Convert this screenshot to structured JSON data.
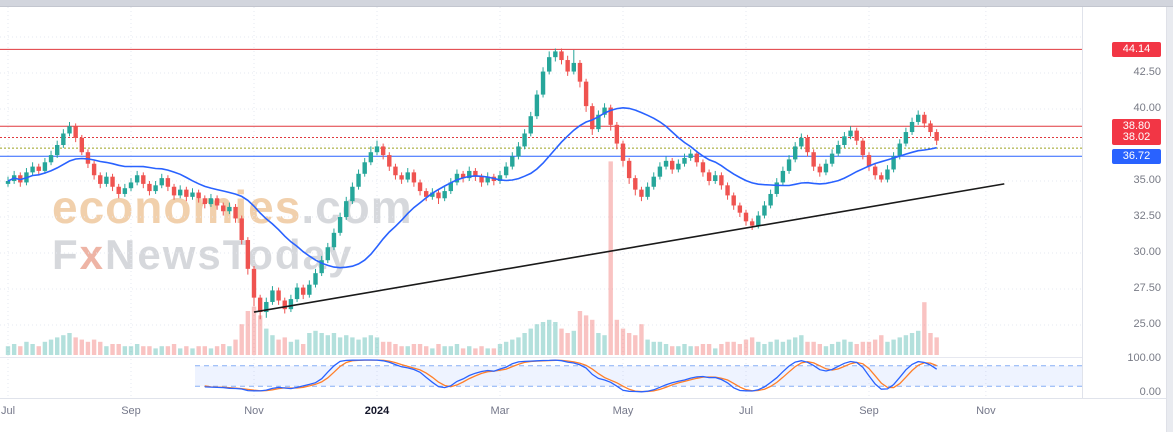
{
  "watermark": {
    "brand": "economies",
    "brand_suffix": ".com",
    "tagline_f": "F",
    "tagline_x": "x",
    "tagline_rest": "NewsToday"
  },
  "axis": {
    "y_ticks": [
      {
        "label": "42.50",
        "price": 42.5
      },
      {
        "label": "40.00",
        "price": 40.0
      },
      {
        "label": "35.00",
        "price": 35.0
      },
      {
        "label": "32.50",
        "price": 32.5
      },
      {
        "label": "30.00",
        "price": 30.0
      },
      {
        "label": "27.50",
        "price": 27.5
      },
      {
        "label": "25.00",
        "price": 25.0
      }
    ],
    "osc_ticks": [
      {
        "label": "100.00",
        "value": 100
      },
      {
        "label": "0.00",
        "value": 0
      }
    ],
    "x_ticks": [
      {
        "label": "Jul",
        "index": 0
      },
      {
        "label": "Sep",
        "index": 20
      },
      {
        "label": "Nov",
        "index": 40
      },
      {
        "label": "2024",
        "index": 60,
        "bold": true
      },
      {
        "label": "Mar",
        "index": 80
      },
      {
        "label": "May",
        "index": 100
      },
      {
        "label": "Jul",
        "index": 120
      },
      {
        "label": "Sep",
        "index": 140
      },
      {
        "label": "Nov",
        "index": 159
      }
    ]
  },
  "chart_data": {
    "type": "candlestick",
    "title": "",
    "x_axis_labels": [
      "Jul",
      "Sep",
      "Nov",
      "2024",
      "Mar",
      "May",
      "Jul",
      "Sep",
      "Nov"
    ],
    "visible_price_range": [
      22.8,
      47.0
    ],
    "grid_prices": [
      25,
      27.5,
      30,
      32.5,
      35,
      37.5,
      40,
      42.5,
      45
    ],
    "price_lines": [
      {
        "price": 44.14,
        "label": "44.14",
        "color": "#e0393e",
        "line_style": "solid",
        "badge": true,
        "badge_color": "#f23645"
      },
      {
        "price": 38.8,
        "label": "38.80",
        "color": "#e0393e",
        "line_style": "solid",
        "badge": true,
        "badge_color": "#f23645"
      },
      {
        "price": 38.02,
        "label": "38.02",
        "color": "#e0393e",
        "line_style": "dotted",
        "badge": true,
        "badge_color": "#f23645"
      },
      {
        "price": 37.28,
        "label": "",
        "color": "#9aa11f",
        "line_style": "dotted",
        "badge": false,
        "badge_color": ""
      },
      {
        "price": 36.72,
        "label": "36.72",
        "color": "#2962ff",
        "line_style": "solid",
        "badge": true,
        "badge_color": "#2962ff"
      }
    ],
    "trendline": {
      "from_index": 40,
      "from_price": 25.9,
      "to_index": 162,
      "to_price": 34.8,
      "color": "#1a1a1a"
    },
    "indicators": {
      "sma": {
        "period": 20,
        "color": "#2962ff"
      },
      "stochastic": {
        "k_period": 14,
        "smooth": 3,
        "d_period": 3,
        "k_color": "#2962ff",
        "d_color": "#ff7f2a",
        "upper_band": 80,
        "lower_band": 20,
        "start_index": 32,
        "range": [
          0,
          100
        ]
      }
    },
    "colors": {
      "up": "#26a69a",
      "down": "#ef5350",
      "volume_up": "rgba(38,166,154,0.35)",
      "volume_down": "rgba(239,83,80,0.35)",
      "grid": "#e6e8f0",
      "band_fill": "rgba(41,98,255,0.08)",
      "band_line": "#86aef5"
    },
    "candles": [
      [
        34.8,
        35.3,
        34.6,
        35.0,
        4
      ],
      [
        35.0,
        35.7,
        34.8,
        35.4,
        5
      ],
      [
        35.4,
        35.6,
        34.6,
        34.9,
        4
      ],
      [
        34.9,
        35.9,
        34.7,
        35.6,
        6
      ],
      [
        35.6,
        36.3,
        35.4,
        36.0,
        5
      ],
      [
        36.0,
        36.2,
        35.4,
        35.7,
        4
      ],
      [
        35.7,
        36.6,
        35.5,
        36.3,
        6
      ],
      [
        36.3,
        37.1,
        36.1,
        36.8,
        7
      ],
      [
        36.8,
        37.8,
        36.6,
        37.5,
        8
      ],
      [
        37.5,
        38.6,
        37.3,
        38.3,
        9
      ],
      [
        38.3,
        39.1,
        38.1,
        38.8,
        10
      ],
      [
        38.8,
        39.0,
        37.7,
        38.0,
        8
      ],
      [
        38.0,
        38.2,
        36.8,
        37.0,
        7
      ],
      [
        37.0,
        37.2,
        35.9,
        36.2,
        6
      ],
      [
        36.2,
        36.4,
        35.1,
        35.4,
        7
      ],
      [
        35.4,
        35.6,
        34.5,
        34.8,
        6
      ],
      [
        34.8,
        35.6,
        34.6,
        35.3,
        4
      ],
      [
        35.3,
        35.5,
        34.3,
        34.6,
        5
      ],
      [
        34.6,
        34.8,
        33.8,
        34.1,
        5
      ],
      [
        34.1,
        34.8,
        33.9,
        34.5,
        4
      ],
      [
        34.5,
        35.2,
        34.3,
        34.9,
        4
      ],
      [
        34.9,
        35.7,
        34.7,
        35.4,
        5
      ],
      [
        35.4,
        35.6,
        34.5,
        34.8,
        4
      ],
      [
        34.8,
        35.0,
        34.0,
        34.3,
        4
      ],
      [
        34.3,
        35.0,
        34.1,
        34.7,
        3
      ],
      [
        34.7,
        35.5,
        34.5,
        35.2,
        4
      ],
      [
        35.2,
        35.4,
        34.3,
        34.6,
        4
      ],
      [
        34.6,
        34.8,
        33.7,
        34.0,
        5
      ],
      [
        34.0,
        34.7,
        33.8,
        34.4,
        3
      ],
      [
        34.4,
        34.6,
        33.6,
        33.9,
        4
      ],
      [
        33.9,
        34.5,
        33.7,
        34.2,
        3
      ],
      [
        34.2,
        34.4,
        33.5,
        33.8,
        4
      ],
      [
        33.8,
        34.0,
        33.1,
        33.4,
        4
      ],
      [
        33.4,
        34.1,
        33.2,
        33.8,
        3
      ],
      [
        33.8,
        34.0,
        33.0,
        33.3,
        4
      ],
      [
        33.3,
        33.5,
        32.6,
        32.9,
        5
      ],
      [
        32.9,
        33.5,
        32.7,
        33.2,
        4
      ],
      [
        33.2,
        33.4,
        32.1,
        32.4,
        7
      ],
      [
        32.4,
        32.6,
        30.6,
        30.9,
        14
      ],
      [
        30.9,
        31.1,
        28.5,
        28.9,
        20
      ],
      [
        28.9,
        29.1,
        26.3,
        26.9,
        22
      ],
      [
        26.9,
        27.1,
        25.4,
        25.9,
        18
      ],
      [
        25.9,
        26.9,
        25.5,
        26.6,
        12
      ],
      [
        26.6,
        27.7,
        26.4,
        27.4,
        9
      ],
      [
        27.4,
        27.6,
        26.4,
        26.7,
        7
      ],
      [
        26.7,
        26.9,
        25.8,
        26.1,
        8
      ],
      [
        26.1,
        27.1,
        25.9,
        26.8,
        6
      ],
      [
        26.8,
        27.9,
        26.6,
        27.6,
        7
      ],
      [
        27.6,
        27.8,
        26.8,
        27.1,
        5
      ],
      [
        27.1,
        28.1,
        26.9,
        27.8,
        10
      ],
      [
        27.8,
        28.9,
        27.6,
        28.6,
        11
      ],
      [
        28.6,
        29.8,
        28.4,
        29.5,
        10
      ],
      [
        29.5,
        30.7,
        29.3,
        30.4,
        9
      ],
      [
        30.4,
        31.7,
        30.2,
        31.4,
        10
      ],
      [
        31.4,
        32.8,
        31.2,
        32.5,
        8
      ],
      [
        32.5,
        33.9,
        32.3,
        33.6,
        9
      ],
      [
        33.6,
        34.9,
        33.4,
        34.6,
        8
      ],
      [
        34.6,
        35.8,
        34.4,
        35.5,
        7
      ],
      [
        35.5,
        36.6,
        35.3,
        36.3,
        8
      ],
      [
        36.3,
        37.4,
        36.1,
        37.0,
        9
      ],
      [
        37.0,
        37.8,
        36.8,
        37.4,
        8
      ],
      [
        37.4,
        37.6,
        36.5,
        36.8,
        6
      ],
      [
        36.8,
        37.0,
        35.7,
        36.0,
        6
      ],
      [
        36.0,
        36.2,
        35.1,
        35.4,
        5
      ],
      [
        35.4,
        35.6,
        34.8,
        35.1,
        4
      ],
      [
        35.1,
        35.9,
        34.9,
        35.6,
        4
      ],
      [
        35.6,
        35.8,
        34.6,
        34.9,
        5
      ],
      [
        34.9,
        35.1,
        34.0,
        34.3,
        5
      ],
      [
        34.3,
        34.5,
        33.6,
        33.9,
        4
      ],
      [
        33.9,
        34.5,
        33.7,
        34.2,
        3
      ],
      [
        34.2,
        34.4,
        33.4,
        33.8,
        5
      ],
      [
        33.8,
        34.6,
        33.6,
        34.3,
        4
      ],
      [
        34.3,
        35.2,
        34.1,
        34.9,
        4
      ],
      [
        34.9,
        35.8,
        34.7,
        35.5,
        5
      ],
      [
        35.5,
        35.7,
        34.9,
        35.2,
        3
      ],
      [
        35.2,
        36.0,
        35.0,
        35.7,
        4
      ],
      [
        35.7,
        35.9,
        35.0,
        35.3,
        3
      ],
      [
        35.3,
        35.5,
        34.6,
        34.9,
        4
      ],
      [
        34.9,
        35.6,
        34.7,
        35.3,
        3
      ],
      [
        35.3,
        35.5,
        34.7,
        35.0,
        3
      ],
      [
        35.0,
        35.7,
        34.8,
        35.4,
        5
      ],
      [
        35.4,
        36.3,
        35.2,
        36.0,
        6
      ],
      [
        36.0,
        37.0,
        35.8,
        36.7,
        7
      ],
      [
        36.7,
        37.7,
        36.5,
        37.4,
        8
      ],
      [
        37.4,
        38.6,
        37.2,
        38.3,
        10
      ],
      [
        38.3,
        39.8,
        38.1,
        39.5,
        12
      ],
      [
        39.5,
        41.3,
        39.3,
        41.0,
        14
      ],
      [
        41.0,
        42.9,
        40.8,
        42.6,
        15
      ],
      [
        42.6,
        44.0,
        42.4,
        43.6,
        16
      ],
      [
        43.6,
        44.2,
        43.3,
        44.0,
        15
      ],
      [
        44.0,
        44.2,
        43.1,
        43.4,
        12
      ],
      [
        43.4,
        43.7,
        42.3,
        42.6,
        10
      ],
      [
        42.6,
        44.1,
        42.4,
        43.2,
        11
      ],
      [
        43.2,
        43.4,
        41.5,
        41.9,
        20
      ],
      [
        41.9,
        42.1,
        39.8,
        40.2,
        18
      ],
      [
        40.2,
        40.4,
        38.2,
        38.6,
        16
      ],
      [
        38.6,
        39.9,
        38.4,
        39.6,
        10
      ],
      [
        39.6,
        40.4,
        39.4,
        40.1,
        9
      ],
      [
        40.1,
        40.3,
        38.5,
        38.9,
        88
      ],
      [
        38.9,
        39.1,
        37.2,
        37.6,
        16
      ],
      [
        37.6,
        37.8,
        36.0,
        36.4,
        12
      ],
      [
        36.4,
        36.6,
        34.8,
        35.2,
        10
      ],
      [
        35.2,
        35.4,
        34.0,
        34.4,
        9
      ],
      [
        34.4,
        34.6,
        33.6,
        33.9,
        14
      ],
      [
        33.9,
        34.9,
        33.7,
        34.6,
        7
      ],
      [
        34.6,
        35.6,
        34.4,
        35.3,
        6
      ],
      [
        35.3,
        36.3,
        35.1,
        36.0,
        6
      ],
      [
        36.0,
        36.7,
        35.8,
        36.4,
        5
      ],
      [
        36.4,
        36.6,
        35.5,
        35.8,
        4
      ],
      [
        35.8,
        36.5,
        35.6,
        36.2,
        4
      ],
      [
        36.2,
        36.9,
        36.0,
        36.6,
        5
      ],
      [
        36.6,
        37.2,
        36.4,
        36.9,
        4
      ],
      [
        36.9,
        37.1,
        36.0,
        36.3,
        4
      ],
      [
        36.3,
        36.5,
        35.3,
        35.6,
        5
      ],
      [
        35.6,
        35.8,
        34.7,
        35.0,
        5
      ],
      [
        35.0,
        35.7,
        34.8,
        35.4,
        3
      ],
      [
        35.4,
        35.6,
        34.4,
        34.7,
        5
      ],
      [
        34.7,
        34.9,
        33.7,
        34.0,
        6
      ],
      [
        34.0,
        34.2,
        33.0,
        33.3,
        6
      ],
      [
        33.3,
        33.5,
        32.5,
        32.8,
        5
      ],
      [
        32.8,
        33.0,
        31.9,
        32.2,
        7
      ],
      [
        32.2,
        32.4,
        31.6,
        31.9,
        8
      ],
      [
        31.9,
        32.9,
        31.7,
        32.6,
        6
      ],
      [
        32.6,
        33.6,
        32.4,
        33.3,
        5
      ],
      [
        33.3,
        34.4,
        33.1,
        34.1,
        6
      ],
      [
        34.1,
        35.2,
        33.9,
        34.9,
        7
      ],
      [
        34.9,
        36.0,
        34.7,
        35.7,
        6
      ],
      [
        35.7,
        36.8,
        35.5,
        36.5,
        7
      ],
      [
        36.5,
        37.7,
        36.3,
        37.4,
        8
      ],
      [
        37.4,
        38.3,
        37.2,
        38.0,
        9
      ],
      [
        38.0,
        38.2,
        36.7,
        37.0,
        6
      ],
      [
        37.0,
        37.2,
        35.7,
        36.0,
        6
      ],
      [
        36.0,
        36.2,
        35.3,
        35.6,
        5
      ],
      [
        35.6,
        36.5,
        35.4,
        36.2,
        4
      ],
      [
        36.2,
        37.2,
        36.0,
        36.9,
        5
      ],
      [
        36.9,
        37.8,
        36.7,
        37.5,
        6
      ],
      [
        37.5,
        38.4,
        37.3,
        38.1,
        7
      ],
      [
        38.1,
        38.8,
        37.9,
        38.5,
        6
      ],
      [
        38.5,
        38.7,
        37.5,
        37.8,
        5
      ],
      [
        37.8,
        38.0,
        36.5,
        36.8,
        6
      ],
      [
        36.8,
        37.0,
        35.7,
        36.0,
        6
      ],
      [
        36.0,
        36.2,
        35.1,
        35.4,
        7
      ],
      [
        35.4,
        35.6,
        34.9,
        35.1,
        9
      ],
      [
        35.1,
        36.1,
        34.9,
        35.8,
        6
      ],
      [
        35.8,
        37.0,
        35.6,
        36.7,
        7
      ],
      [
        36.7,
        37.9,
        36.5,
        37.6,
        8
      ],
      [
        37.6,
        38.7,
        37.4,
        38.4,
        9
      ],
      [
        38.4,
        39.4,
        38.2,
        39.1,
        10
      ],
      [
        39.1,
        39.9,
        38.9,
        39.6,
        11
      ],
      [
        39.6,
        39.8,
        38.7,
        39.0,
        24
      ],
      [
        39.0,
        39.2,
        38.1,
        38.4,
        10
      ],
      [
        38.4,
        38.6,
        37.5,
        37.8,
        8
      ]
    ]
  }
}
